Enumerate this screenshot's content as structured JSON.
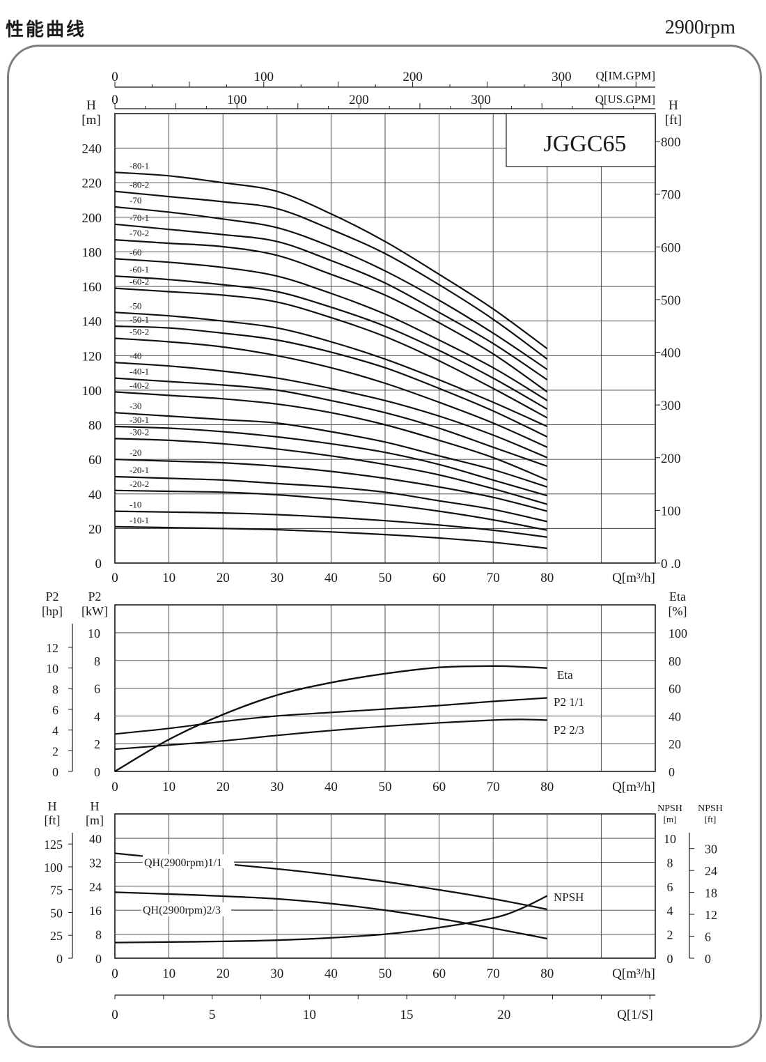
{
  "header": {
    "title": "性能曲线",
    "speed": "2900rpm"
  },
  "chart_data": [
    {
      "type": "line",
      "model": "JGGC65",
      "x_top1_label": "Q[IM.GPM]",
      "x_top1_ticks": [
        "0",
        "100",
        "200",
        "300"
      ],
      "x_top2_label": "Q[US.GPM]",
      "x_top2_ticks": [
        "0",
        "100",
        "200",
        "300"
      ],
      "xlabel": "Q[m³/h]",
      "xlim": [
        0,
        100
      ],
      "x_ticks": [
        "0",
        "10",
        "20",
        "30",
        "40",
        "50",
        "60",
        "70",
        "80"
      ],
      "ylabel_left": [
        "H",
        "[m]"
      ],
      "ylim": [
        0,
        260
      ],
      "y_ticks_left": [
        "0",
        "20",
        "40",
        "60",
        "80",
        "100",
        "120",
        "140",
        "160",
        "180",
        "200",
        "220",
        "240"
      ],
      "ylabel_right": [
        "H",
        "[ft]"
      ],
      "y_ticks_right": [
        "0 .0",
        "100",
        "200",
        "300",
        "400",
        "500",
        "600",
        "700",
        "800"
      ],
      "x": [
        0,
        10,
        20,
        30,
        40,
        50,
        60,
        70,
        80
      ],
      "series": [
        {
          "name": "-80-1",
          "values": [
            226,
            224,
            220,
            215,
            202,
            186,
            167,
            147,
            124
          ]
        },
        {
          "name": "-80-2",
          "values": [
            215,
            212,
            209,
            205,
            193,
            179,
            161,
            141,
            118
          ]
        },
        {
          "name": "-70",
          "values": [
            206,
            203,
            199,
            194,
            183,
            169,
            152,
            133,
            112
          ]
        },
        {
          "name": "-70-1",
          "values": [
            196,
            193,
            190,
            186,
            175,
            162,
            145,
            127,
            106
          ]
        },
        {
          "name": "-70-2",
          "values": [
            187,
            185,
            183,
            178,
            167,
            155,
            139,
            121,
            99
          ]
        },
        {
          "name": "-60",
          "values": [
            176,
            174,
            171,
            166,
            156,
            144,
            129,
            113,
            94
          ]
        },
        {
          "name": "-60-1",
          "values": [
            166,
            164,
            161,
            157,
            148,
            137,
            123,
            107,
            89
          ]
        },
        {
          "name": "-60-2",
          "values": [
            159,
            157,
            155,
            151,
            142,
            131,
            117,
            101,
            84
          ]
        },
        {
          "name": "-50",
          "values": [
            145,
            143,
            140,
            136,
            128,
            118,
            106,
            93,
            79
          ]
        },
        {
          "name": "-50-1",
          "values": [
            137,
            136,
            133,
            129,
            122,
            113,
            101,
            88,
            73
          ]
        },
        {
          "name": "-50-2",
          "values": [
            130,
            128,
            125,
            120,
            113,
            104,
            93,
            81,
            67
          ]
        },
        {
          "name": "-40",
          "values": [
            116,
            114,
            111,
            107,
            101,
            94,
            85,
            74,
            61
          ]
        },
        {
          "name": "-40-1",
          "values": [
            107,
            105,
            103,
            100,
            94,
            87,
            78,
            67,
            56
          ]
        },
        {
          "name": "-40-2",
          "values": [
            99,
            97,
            95,
            92,
            87,
            80,
            71,
            61,
            48
          ]
        },
        {
          "name": "-30",
          "values": [
            87,
            85,
            83,
            81,
            76,
            70,
            62,
            54,
            44
          ]
        },
        {
          "name": "-30-1",
          "values": [
            79,
            78,
            76,
            73,
            69,
            64,
            57,
            48,
            39
          ]
        },
        {
          "name": "-30-2",
          "values": [
            72,
            71,
            69,
            66,
            62,
            57,
            51,
            43,
            34
          ]
        },
        {
          "name": "-20",
          "values": [
            60,
            59,
            58,
            56,
            53,
            49,
            44,
            38,
            30
          ]
        },
        {
          "name": "-20-1",
          "values": [
            50,
            49,
            48,
            46,
            44,
            41,
            36,
            31,
            24
          ]
        },
        {
          "name": "-20-2",
          "values": [
            42,
            41.5,
            41,
            39.5,
            37,
            34,
            30,
            25,
            19
          ]
        },
        {
          "name": "-10",
          "values": [
            30,
            29.5,
            29,
            28,
            26.5,
            24.5,
            22,
            19,
            15
          ]
        },
        {
          "name": "-10-1",
          "values": [
            21,
            20.5,
            20,
            19.3,
            18,
            16.5,
            14.5,
            12,
            8.5
          ]
        }
      ]
    },
    {
      "type": "line",
      "xlabel": "Q[m³/h]",
      "xlim": [
        0,
        100
      ],
      "x_ticks": [
        "0",
        "10",
        "20",
        "30",
        "40",
        "50",
        "60",
        "70",
        "80"
      ],
      "ylabel_hp": [
        "P2",
        "[hp]"
      ],
      "y_ticks_hp": [
        "0",
        "2",
        "4",
        "6",
        "8",
        "10",
        "12"
      ],
      "ylabel_kw": [
        "P2",
        "[kW]"
      ],
      "ylim_kw": [
        0,
        10
      ],
      "y_ticks_kw": [
        "0",
        "2",
        "4",
        "6",
        "8",
        "10"
      ],
      "ylabel_right": [
        "Eta",
        "[%]"
      ],
      "ylim_right": [
        0,
        100
      ],
      "y_ticks_right": [
        "0",
        "20",
        "40",
        "60",
        "80",
        "100"
      ],
      "series": [
        {
          "name": "Eta",
          "axis": "right",
          "x": [
            0,
            10,
            20,
            30,
            40,
            50,
            60,
            70,
            75,
            80
          ],
          "values": [
            0,
            23,
            41,
            55,
            64,
            70.5,
            75,
            76,
            75.5,
            74.5
          ]
        },
        {
          "name": "P2 1/1",
          "axis": "kW",
          "x": [
            0,
            10,
            20,
            30,
            40,
            50,
            60,
            70,
            80
          ],
          "values": [
            2.7,
            3.1,
            3.6,
            4.0,
            4.25,
            4.5,
            4.75,
            5.05,
            5.3
          ]
        },
        {
          "name": "P2 2/3",
          "axis": "kW",
          "x": [
            0,
            10,
            20,
            30,
            40,
            50,
            60,
            70,
            75,
            80
          ],
          "values": [
            1.6,
            1.9,
            2.2,
            2.6,
            2.95,
            3.25,
            3.5,
            3.7,
            3.75,
            3.7
          ]
        }
      ]
    },
    {
      "type": "line",
      "xlabel": "Q[m³/h]",
      "xlim": [
        0,
        100
      ],
      "x_ticks": [
        "0",
        "10",
        "20",
        "30",
        "40",
        "50",
        "60",
        "70",
        "80"
      ],
      "ylabel_ft": [
        "H",
        "[ft]"
      ],
      "y_ticks_ft": [
        "0",
        "25",
        "50",
        "75",
        "100",
        "125"
      ],
      "ylabel_m": [
        "H",
        "[m]"
      ],
      "ylim_m": [
        0,
        40
      ],
      "y_ticks_m": [
        "0",
        "8",
        "16",
        "24",
        "32",
        "40"
      ],
      "ylabel_npsh_m": [
        "NPSH",
        "[m]"
      ],
      "ylim_npsh_m": [
        0,
        10
      ],
      "y_ticks_npsh_m": [
        "0",
        "2",
        "4",
        "6",
        "8",
        "10"
      ],
      "ylabel_npsh_ft": [
        "NPSH",
        "[ft]"
      ],
      "y_ticks_npsh_ft": [
        "0",
        "6",
        "12",
        "18",
        "24",
        "30"
      ],
      "x2_label": "Q[1/S]",
      "x2_ticks": [
        "0",
        "5",
        "10",
        "15",
        "20"
      ],
      "series": [
        {
          "name": "QH(2900rpm)1/1",
          "axis": "m",
          "x": [
            0,
            10,
            20,
            30,
            40,
            50,
            60,
            70,
            80
          ],
          "values": [
            35,
            33.2,
            31.5,
            29.8,
            27.8,
            25.5,
            22.8,
            19.8,
            16.3
          ]
        },
        {
          "name": "QH(2900rpm)2/3",
          "axis": "m",
          "x": [
            0,
            10,
            20,
            30,
            40,
            50,
            60,
            70,
            80
          ],
          "values": [
            22,
            21.4,
            20.7,
            19.8,
            18.2,
            16,
            13.2,
            10,
            6.5
          ]
        },
        {
          "name": "NPSH",
          "axis": "npsh_m",
          "x": [
            0,
            10,
            20,
            30,
            40,
            50,
            60,
            70,
            75,
            80
          ],
          "values": [
            1.3,
            1.35,
            1.4,
            1.5,
            1.7,
            2.0,
            2.55,
            3.35,
            4.1,
            5.2
          ]
        }
      ]
    }
  ]
}
